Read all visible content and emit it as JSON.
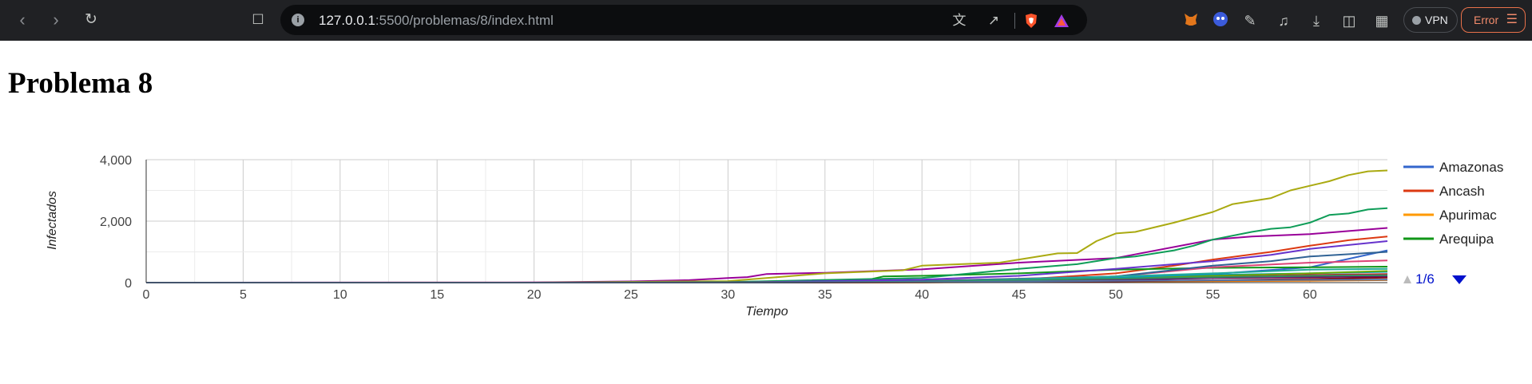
{
  "browser": {
    "url_host": "127.0.0.1",
    "url_path": ":5500/problemas/8/index.html",
    "vpn_label": "VPN",
    "error_label": "Error"
  },
  "page": {
    "title": "Problema 8"
  },
  "legend": {
    "pager": "1/6"
  },
  "chart_data": {
    "type": "line",
    "xlabel": "Tiempo",
    "ylabel": "Infectados",
    "xlim": [
      0,
      64
    ],
    "ylim": [
      0,
      4000
    ],
    "x_ticks": [
      0,
      5,
      10,
      15,
      20,
      25,
      30,
      35,
      40,
      45,
      50,
      55,
      60
    ],
    "y_ticks": [
      0,
      2000,
      4000
    ],
    "y_tick_labels": [
      "0",
      "2,000",
      "4,000"
    ],
    "grid": true,
    "legend_position": "right",
    "legend_visible": [
      "Amazonas",
      "Ancash",
      "Apurimac",
      "Arequipa"
    ],
    "series": [
      {
        "name": "Amazonas",
        "color": "#3366cc",
        "points": [
          [
            0,
            0
          ],
          [
            20,
            0
          ],
          [
            30,
            5
          ],
          [
            40,
            40
          ],
          [
            45,
            80
          ],
          [
            50,
            150
          ],
          [
            55,
            280
          ],
          [
            60,
            500
          ],
          [
            64,
            1050
          ]
        ]
      },
      {
        "name": "Ancash",
        "color": "#dc3912",
        "points": [
          [
            0,
            0
          ],
          [
            20,
            0
          ],
          [
            30,
            5
          ],
          [
            40,
            30
          ],
          [
            45,
            100
          ],
          [
            50,
            300
          ],
          [
            53,
            550
          ],
          [
            55,
            750
          ],
          [
            58,
            1000
          ],
          [
            60,
            1200
          ],
          [
            62,
            1380
          ],
          [
            64,
            1500
          ]
        ]
      },
      {
        "name": "Apurimac",
        "color": "#ff9900",
        "points": [
          [
            0,
            0
          ],
          [
            30,
            0
          ],
          [
            40,
            10
          ],
          [
            50,
            40
          ],
          [
            60,
            80
          ],
          [
            64,
            100
          ]
        ]
      },
      {
        "name": "Arequipa",
        "color": "#109618",
        "points": [
          [
            0,
            0
          ],
          [
            20,
            0
          ],
          [
            30,
            10
          ],
          [
            37,
            60
          ],
          [
            38,
            200
          ],
          [
            40,
            220
          ],
          [
            45,
            300
          ],
          [
            50,
            420
          ],
          [
            55,
            480
          ],
          [
            60,
            500
          ],
          [
            64,
            520
          ]
        ]
      },
      {
        "color": "#990099",
        "points": [
          [
            0,
            0
          ],
          [
            20,
            5
          ],
          [
            25,
            40
          ],
          [
            28,
            80
          ],
          [
            30,
            150
          ],
          [
            31,
            180
          ],
          [
            32,
            280
          ],
          [
            35,
            320
          ],
          [
            40,
            430
          ],
          [
            45,
            650
          ],
          [
            50,
            800
          ],
          [
            55,
            1400
          ],
          [
            57,
            1500
          ],
          [
            60,
            1580
          ],
          [
            64,
            1780
          ]
        ]
      },
      {
        "color": "#aaaa11",
        "points": [
          [
            0,
            0
          ],
          [
            20,
            0
          ],
          [
            30,
            50
          ],
          [
            35,
            300
          ],
          [
            39,
            400
          ],
          [
            40,
            550
          ],
          [
            44,
            650
          ],
          [
            45,
            750
          ],
          [
            47,
            950
          ],
          [
            48,
            960
          ],
          [
            49,
            1350
          ],
          [
            50,
            1600
          ],
          [
            51,
            1650
          ],
          [
            53,
            1950
          ],
          [
            55,
            2300
          ],
          [
            56,
            2550
          ],
          [
            58,
            2750
          ],
          [
            59,
            3000
          ],
          [
            60,
            3150
          ],
          [
            61,
            3300
          ],
          [
            62,
            3500
          ],
          [
            63,
            3620
          ],
          [
            64,
            3650
          ]
        ]
      },
      {
        "color": "#0f9d58",
        "points": [
          [
            0,
            0
          ],
          [
            20,
            0
          ],
          [
            30,
            20
          ],
          [
            40,
            150
          ],
          [
            45,
            450
          ],
          [
            48,
            600
          ],
          [
            50,
            800
          ],
          [
            51,
            850
          ],
          [
            53,
            1050
          ],
          [
            54,
            1200
          ],
          [
            55,
            1400
          ],
          [
            57,
            1650
          ],
          [
            58,
            1750
          ],
          [
            59,
            1800
          ],
          [
            60,
            1950
          ],
          [
            61,
            2200
          ],
          [
            62,
            2250
          ],
          [
            63,
            2380
          ],
          [
            64,
            2420
          ]
        ]
      },
      {
        "color": "#0099c6",
        "points": [
          [
            0,
            0
          ],
          [
            30,
            0
          ],
          [
            40,
            30
          ],
          [
            50,
            150
          ],
          [
            55,
            250
          ],
          [
            60,
            300
          ],
          [
            64,
            350
          ]
        ]
      },
      {
        "color": "#dd4477",
        "points": [
          [
            0,
            0
          ],
          [
            30,
            5
          ],
          [
            40,
            60
          ],
          [
            50,
            200
          ],
          [
            55,
            500
          ],
          [
            60,
            650
          ],
          [
            64,
            720
          ]
        ]
      },
      {
        "color": "#66aa00",
        "points": [
          [
            0,
            0
          ],
          [
            30,
            0
          ],
          [
            40,
            20
          ],
          [
            50,
            120
          ],
          [
            55,
            220
          ],
          [
            60,
            300
          ],
          [
            64,
            380
          ]
        ]
      },
      {
        "color": "#b82e2e",
        "points": [
          [
            0,
            0
          ],
          [
            30,
            0
          ],
          [
            40,
            30
          ],
          [
            50,
            100
          ],
          [
            55,
            180
          ],
          [
            60,
            250
          ],
          [
            64,
            280
          ]
        ]
      },
      {
        "color": "#316395",
        "points": [
          [
            0,
            0
          ],
          [
            30,
            0
          ],
          [
            40,
            50
          ],
          [
            50,
            200
          ],
          [
            55,
            550
          ],
          [
            58,
            700
          ],
          [
            60,
            850
          ],
          [
            64,
            1000
          ]
        ]
      },
      {
        "color": "#22aa99",
        "points": [
          [
            0,
            0
          ],
          [
            30,
            0
          ],
          [
            40,
            20
          ],
          [
            50,
            200
          ],
          [
            55,
            300
          ],
          [
            60,
            420
          ],
          [
            64,
            450
          ]
        ]
      },
      {
        "color": "#6633cc",
        "points": [
          [
            0,
            0
          ],
          [
            30,
            0
          ],
          [
            40,
            100
          ],
          [
            45,
            220
          ],
          [
            50,
            450
          ],
          [
            55,
            700
          ],
          [
            58,
            900
          ],
          [
            60,
            1100
          ],
          [
            64,
            1350
          ]
        ]
      },
      {
        "color": "#e67300",
        "points": [
          [
            0,
            0
          ],
          [
            30,
            0
          ],
          [
            40,
            5
          ],
          [
            50,
            30
          ],
          [
            60,
            60
          ],
          [
            64,
            80
          ]
        ]
      },
      {
        "color": "#8b0707",
        "points": [
          [
            0,
            0
          ],
          [
            30,
            0
          ],
          [
            40,
            10
          ],
          [
            50,
            40
          ],
          [
            60,
            120
          ],
          [
            64,
            160
          ]
        ]
      },
      {
        "color": "#651067",
        "points": [
          [
            0,
            0
          ],
          [
            30,
            0
          ],
          [
            40,
            20
          ],
          [
            50,
            80
          ],
          [
            55,
            150
          ],
          [
            60,
            180
          ],
          [
            64,
            200
          ]
        ]
      },
      {
        "color": "#329262",
        "points": [
          [
            0,
            0
          ],
          [
            30,
            0
          ],
          [
            40,
            30
          ],
          [
            50,
            130
          ],
          [
            55,
            180
          ],
          [
            60,
            220
          ],
          [
            64,
            240
          ]
        ]
      },
      {
        "color": "#5574a6",
        "points": [
          [
            0,
            0
          ],
          [
            30,
            0
          ],
          [
            40,
            15
          ],
          [
            50,
            60
          ],
          [
            60,
            90
          ],
          [
            64,
            100
          ]
        ]
      }
    ]
  }
}
